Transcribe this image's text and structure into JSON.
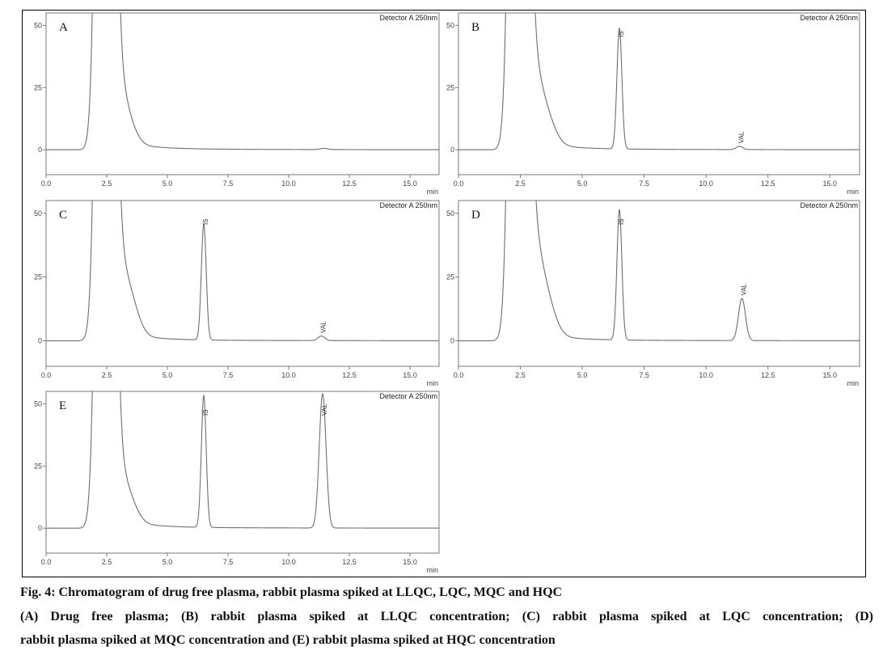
{
  "caption": {
    "title": "Fig. 4: Chromatogram of drug free plasma, rabbit plasma spiked at LLQC, LQC, MQC and HQC",
    "line1": "(A) Drug free plasma; (B) rabbit plasma spiked at LLQC concentration; (C) rabbit plasma spiked at LQC concentration; (D)",
    "line2": "rabbit plasma spiked at MQC concentration and (E) rabbit plasma spiked at HQC concentration"
  },
  "colors": {
    "trace": "#6e6e6e",
    "axis": "#7a7a7a",
    "frame": "#000000"
  },
  "chart_data": [
    {
      "type": "line",
      "panel": "A",
      "detector": "Detector A 250nm",
      "xlabel": "min",
      "xlim": [
        0,
        16.2
      ],
      "ylim": [
        -10,
        55
      ],
      "xticks": [
        "0.0",
        "2.5",
        "5.0",
        "7.5",
        "10.0",
        "12.5",
        "15.0"
      ],
      "yticks": [
        "0",
        "25",
        "50"
      ],
      "peaks": [
        {
          "rt": 2.45,
          "height": 600,
          "width": 0.25,
          "label": ""
        },
        {
          "rt": 2.92,
          "height": 20.5,
          "width": 0.32,
          "label": ""
        },
        {
          "rt": 3.35,
          "height": 8,
          "width": 0.35,
          "label": ""
        },
        {
          "rt": 11.45,
          "height": 0.5,
          "width": 0.15,
          "label": ""
        }
      ]
    },
    {
      "type": "line",
      "panel": "B",
      "detector": "Detector A 250nm",
      "xlabel": "min",
      "xlim": [
        0,
        16.2
      ],
      "ylim": [
        -10,
        55
      ],
      "xticks": [
        "0.0",
        "2.5",
        "5.0",
        "7.5",
        "10.0",
        "12.5",
        "15.0"
      ],
      "yticks": [
        "0",
        "25",
        "50"
      ],
      "peaks": [
        {
          "rt": 2.45,
          "height": 600,
          "width": 0.25,
          "label": ""
        },
        {
          "rt": 2.95,
          "height": 23,
          "width": 0.3,
          "label": ""
        },
        {
          "rt": 3.4,
          "height": 15,
          "width": 0.4,
          "label": ""
        },
        {
          "rt": 6.5,
          "height": 48.5,
          "width": 0.1,
          "label": "IS"
        },
        {
          "rt": 11.35,
          "height": 1.3,
          "width": 0.13,
          "label": "VAL"
        }
      ]
    },
    {
      "type": "line",
      "panel": "C",
      "detector": "Detector A 250nm",
      "xlabel": "min",
      "xlim": [
        0,
        16.2
      ],
      "ylim": [
        -10,
        55
      ],
      "xticks": [
        "0.0",
        "2.5",
        "5.0",
        "7.5",
        "10.0",
        "12.5",
        "15.0"
      ],
      "yticks": [
        "0",
        "25",
        "50"
      ],
      "peaks": [
        {
          "rt": 2.45,
          "height": 600,
          "width": 0.25,
          "label": ""
        },
        {
          "rt": 2.95,
          "height": 24,
          "width": 0.3,
          "label": ""
        },
        {
          "rt": 3.45,
          "height": 14,
          "width": 0.35,
          "label": ""
        },
        {
          "rt": 6.5,
          "height": 45.5,
          "width": 0.1,
          "label": "IS"
        },
        {
          "rt": 11.35,
          "height": 1.8,
          "width": 0.14,
          "label": "VAL"
        }
      ]
    },
    {
      "type": "line",
      "panel": "D",
      "detector": "Detector A 250nm",
      "xlabel": "min",
      "xlim": [
        0,
        16.2
      ],
      "ylim": [
        -10,
        55
      ],
      "xticks": [
        "0.0",
        "2.5",
        "5.0",
        "7.5",
        "10.0",
        "12.5",
        "15.0"
      ],
      "yticks": [
        "0",
        "25",
        "50"
      ],
      "peaks": [
        {
          "rt": 2.45,
          "height": 600,
          "width": 0.25,
          "label": ""
        },
        {
          "rt": 2.95,
          "height": 27.5,
          "width": 0.3,
          "label": ""
        },
        {
          "rt": 3.4,
          "height": 19,
          "width": 0.4,
          "label": ""
        },
        {
          "rt": 6.5,
          "height": 51,
          "width": 0.1,
          "label": "IS"
        },
        {
          "rt": 11.45,
          "height": 16.5,
          "width": 0.14,
          "label": "VAL"
        }
      ]
    },
    {
      "type": "line",
      "panel": "E",
      "detector": "Detector A 250nm",
      "xlabel": "min",
      "xlim": [
        0,
        16.2
      ],
      "ylim": [
        -10,
        55
      ],
      "xticks": [
        "0.0",
        "2.5",
        "5.0",
        "7.5",
        "10.0",
        "12.5",
        "15.0"
      ],
      "yticks": [
        "0",
        "25",
        "50"
      ],
      "peaks": [
        {
          "rt": 2.45,
          "height": 600,
          "width": 0.25,
          "label": ""
        },
        {
          "rt": 2.95,
          "height": 16.5,
          "width": 0.3,
          "label": ""
        },
        {
          "rt": 3.4,
          "height": 9,
          "width": 0.35,
          "label": ""
        },
        {
          "rt": 6.5,
          "height": 53,
          "width": 0.1,
          "label": "IS"
        },
        {
          "rt": 11.4,
          "height": 54,
          "width": 0.14,
          "label": "VAL"
        }
      ]
    }
  ]
}
